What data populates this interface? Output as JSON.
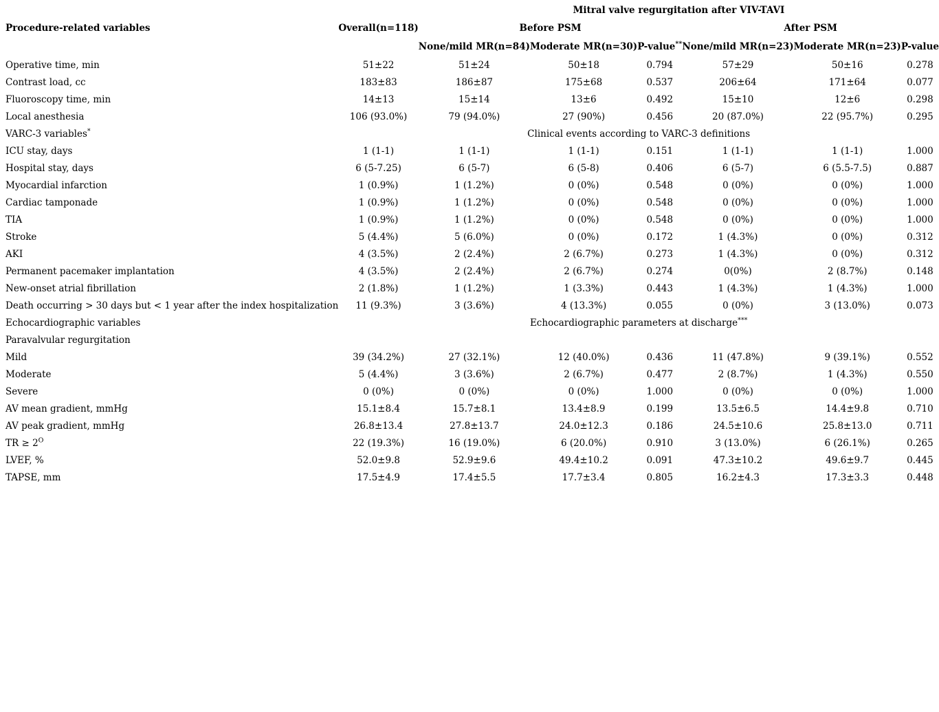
{
  "page": {
    "background_color": "#ffffff",
    "text_color": "#000000"
  },
  "table": {
    "span_header": "Mitral valve regurgitation after VIV-TAVI",
    "col1_header": "Procedure-related variables",
    "overall_header": "Overall(n=118)",
    "before_psm_header": "Before PSM",
    "after_psm_header": "After PSM",
    "subheaders": {
      "before_none_mild": "None/mild MR(n=84)",
      "before_moderate": "Moderate MR(n=30)",
      "before_pvalue": "P-value",
      "before_pvalue_sup": "**",
      "after_none_mild": "None/mild MR(n=23)",
      "after_moderate": "Moderate MR(n=23)",
      "after_pvalue": "P-value"
    },
    "rows": [
      {
        "label": "Operative time, min",
        "cells": [
          "51±22",
          "51±24",
          "50±18",
          "0.794",
          "57±29",
          "50±16",
          "0.278"
        ]
      },
      {
        "label": "Contrast load, cc",
        "cells": [
          "183±83",
          "186±87",
          "175±68",
          "0.537",
          "206±64",
          "171±64",
          "0.077"
        ]
      },
      {
        "label": "Fluoroscopy time, min",
        "cells": [
          "14±13",
          "15±14",
          "13±6",
          "0.492",
          "15±10",
          "12±6",
          "0.298"
        ]
      },
      {
        "label": "Local anesthesia",
        "cells": [
          "106 (93.0%)",
          "79 (94.0%)",
          "27 (90%)",
          "0.456",
          "20 (87.0%)",
          "22 (95.7%)",
          "0.295"
        ]
      },
      {
        "label": "VARC-3 variables",
        "label_sup": "*",
        "span_text": "Clinical events according to VARC-3 definitions"
      },
      {
        "label": "ICU stay, days",
        "cells": [
          "1 (1-1)",
          "1 (1-1)",
          "1 (1-1)",
          "0.151",
          "1 (1-1)",
          "1 (1-1)",
          "1.000"
        ]
      },
      {
        "label": "Hospital stay, days",
        "cells": [
          "6 (5-7.25)",
          "6 (5-7)",
          "6 (5-8)",
          "0.406",
          "6 (5-7)",
          "6 (5.5-7.5)",
          "0.887"
        ]
      },
      {
        "label": "Myocardial infarction",
        "cells": [
          "1 (0.9%)",
          "1 (1.2%)",
          "0 (0%)",
          "0.548",
          "0 (0%)",
          "0 (0%)",
          "1.000"
        ]
      },
      {
        "label": "Cardiac tamponade",
        "cells": [
          "1 (0.9%)",
          "1 (1.2%)",
          "0 (0%)",
          "0.548",
          "0 (0%)",
          "0 (0%)",
          "1.000"
        ]
      },
      {
        "label": "TIA",
        "cells": [
          "1 (0.9%)",
          "1 (1.2%)",
          "0 (0%)",
          "0.548",
          "0 (0%)",
          "0 (0%)",
          "1.000"
        ]
      },
      {
        "label": "Stroke",
        "cells": [
          "5 (4.4%)",
          "5 (6.0%)",
          "0 (0%)",
          "0.172",
          "1 (4.3%)",
          "0 (0%)",
          "0.312"
        ]
      },
      {
        "label": "AKI",
        "cells": [
          "4 (3.5%)",
          "2 (2.4%)",
          "2 (6.7%)",
          "0.273",
          "1 (4.3%)",
          "0 (0%)",
          "0.312"
        ]
      },
      {
        "label": "Permanent pacemaker implantation",
        "cells": [
          "4 (3.5%)",
          "2 (2.4%)",
          "2 (6.7%)",
          "0.274",
          "0(0%)",
          "2 (8.7%)",
          "0.148"
        ]
      },
      {
        "label": "New-onset atrial fibrillation",
        "cells": [
          "2 (1.8%)",
          "1 (1.2%)",
          "1 (3.3%)",
          "0.443",
          "1 (4.3%)",
          "1 (4.3%)",
          "1.000"
        ]
      },
      {
        "label": "Death occurring > 30 days but < 1 year after the index hospitalization",
        "cells": [
          "11 (9.3%)",
          "3 (3.6%)",
          "4 (13.3%)",
          "0.055",
          "0 (0%)",
          "3 (13.0%)",
          "0.073"
        ]
      },
      {
        "label": "Echocardiographic variables",
        "span_text": "Echocardiographic parameters at discharge",
        "span_sup": "***"
      },
      {
        "label": "Paravalvular regurgitation",
        "cells": [
          "",
          "",
          "",
          "",
          "",
          "",
          ""
        ]
      },
      {
        "label": "Mild",
        "cells": [
          "39 (34.2%)",
          "27 (32.1%)",
          "12 (40.0%)",
          "0.436",
          "11 (47.8%)",
          "9 (39.1%)",
          "0.552"
        ]
      },
      {
        "label": "Moderate",
        "cells": [
          "5 (4.4%)",
          "3 (3.6%)",
          "2 (6.7%)",
          "0.477",
          "2 (8.7%)",
          "1 (4.3%)",
          "0.550"
        ]
      },
      {
        "label": "Severe",
        "cells": [
          "0 (0%)",
          "0 (0%)",
          "0 (0%)",
          "1.000",
          "0 (0%)",
          "0 (0%)",
          "1.000"
        ]
      },
      {
        "label": "AV mean gradient, mmHg",
        "cells": [
          "15.1±8.4",
          "15.7±8.1",
          "13.4±8.9",
          "0.199",
          "13.5±6.5",
          "14.4±9.8",
          "0.710"
        ]
      },
      {
        "label": "AV peak gradient, mmHg",
        "cells": [
          "26.8±13.4",
          "27.8±13.7",
          "24.0±12.3",
          "0.186",
          "24.5±10.6",
          "25.8±13.0",
          "0.711"
        ]
      },
      {
        "label": "TR ≥ 2",
        "label_sup": "O",
        "cells": [
          "22 (19.3%)",
          "16 (19.0%)",
          "6 (20.0%)",
          "0.910",
          "3 (13.0%)",
          "6 (26.1%)",
          "0.265"
        ]
      },
      {
        "label": "LVEF, %",
        "cells": [
          "52.0±9.8",
          "52.9±9.6",
          "49.4±10.2",
          "0.091",
          "47.3±10.2",
          "49.6±9.7",
          "0.445"
        ]
      },
      {
        "label": "TAPSE, mm",
        "cells": [
          "17.5±4.9",
          "17.4±5.5",
          "17.7±3.4",
          "0.805",
          "16.2±4.3",
          "17.3±3.3",
          "0.448"
        ]
      }
    ]
  }
}
